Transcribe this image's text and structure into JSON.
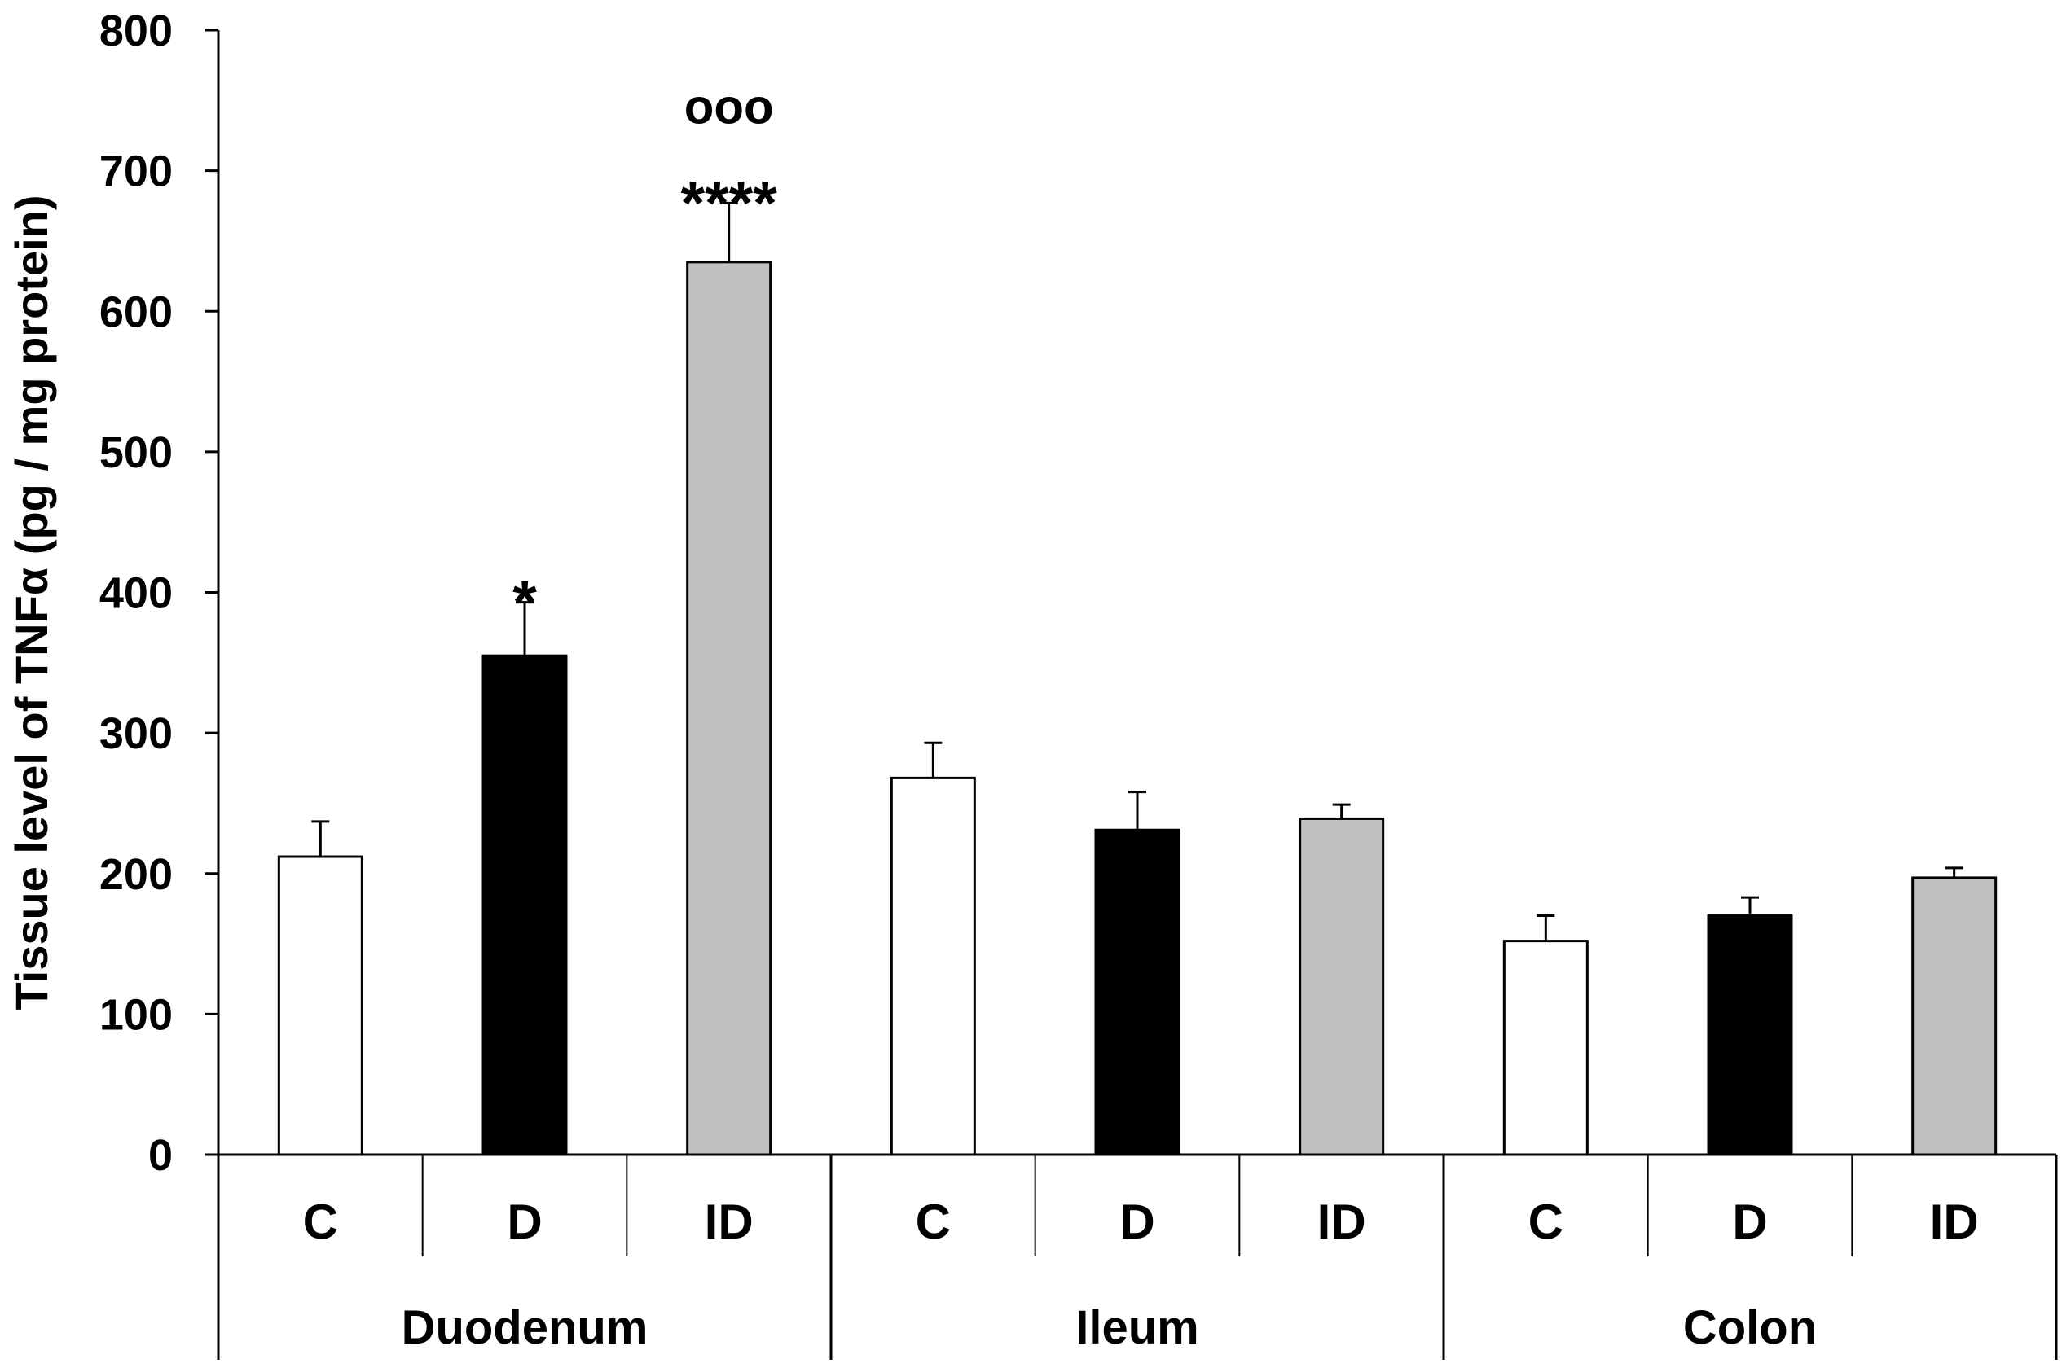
{
  "chart_data": {
    "type": "bar",
    "title": "",
    "ylabel": "Tissue level of TNFα (pg / mg protein)",
    "ylim": [
      0,
      800
    ],
    "yticks": [
      0,
      100,
      200,
      300,
      400,
      500,
      600,
      700,
      800
    ],
    "grid": false,
    "groups": [
      {
        "name": "Duodenum",
        "bars": [
          {
            "label": "C",
            "value": 212,
            "error": 25,
            "fill": "#ffffff",
            "annotations": []
          },
          {
            "label": "D",
            "value": 355,
            "error": 38,
            "fill": "#000000",
            "annotations": [
              "*"
            ]
          },
          {
            "label": "ID",
            "value": 635,
            "error": 42,
            "fill": "#c0c0c0",
            "annotations": [
              "****",
              "ooo"
            ]
          }
        ]
      },
      {
        "name": "Ileum",
        "bars": [
          {
            "label": "C",
            "value": 268,
            "error": 25,
            "fill": "#ffffff",
            "annotations": []
          },
          {
            "label": "D",
            "value": 231,
            "error": 27,
            "fill": "#000000",
            "annotations": []
          },
          {
            "label": "ID",
            "value": 239,
            "error": 10,
            "fill": "#c0c0c0",
            "annotations": []
          }
        ]
      },
      {
        "name": "Colon",
        "bars": [
          {
            "label": "C",
            "value": 152,
            "error": 18,
            "fill": "#ffffff",
            "annotations": []
          },
          {
            "label": "D",
            "value": 170,
            "error": 13,
            "fill": "#000000",
            "annotations": []
          },
          {
            "label": "ID",
            "value": 197,
            "error": 7,
            "fill": "#c0c0c0",
            "annotations": []
          }
        ]
      }
    ]
  }
}
